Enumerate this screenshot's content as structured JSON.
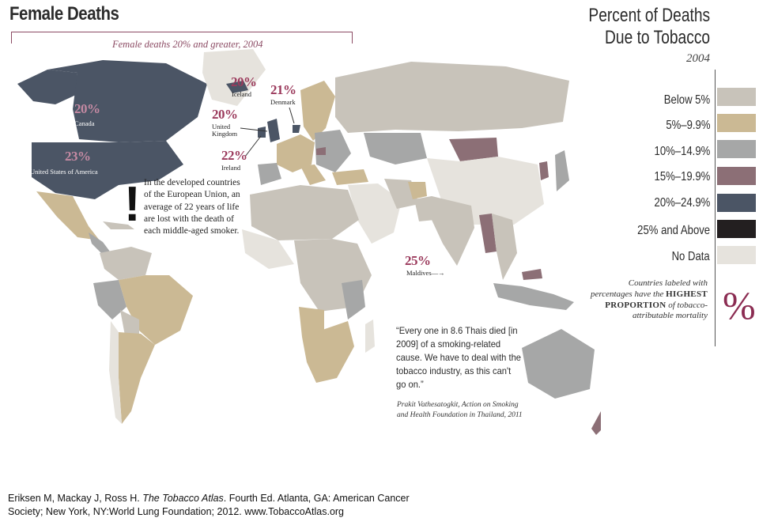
{
  "header": {
    "title": "Female Deaths",
    "subtitle": "Female deaths 20% and greater, 2004"
  },
  "callouts": [
    {
      "id": "canada",
      "pct": "20%",
      "name": "Canada"
    },
    {
      "id": "usa",
      "pct": "23%",
      "name": "United States of America"
    },
    {
      "id": "iceland",
      "pct": "20%",
      "name": "Iceland"
    },
    {
      "id": "denmark",
      "pct": "21%",
      "name": "Denmark"
    },
    {
      "id": "uk",
      "pct": "20%",
      "name": "United Kingdom"
    },
    {
      "id": "ireland",
      "pct": "22%",
      "name": "Ireland"
    },
    {
      "id": "maldives",
      "pct": "25%",
      "name": "Maldives"
    }
  ],
  "note": {
    "mark": "!",
    "text": "In the developed countries of the European Union, an average of 22 years of life are lost with the death of each middle-aged smoker."
  },
  "quote": {
    "text": "“Every one in 8.6 Thais died [in 2009] of a smoking-related cause. We have to deal with the tobacco industry, as this can't go on.”",
    "source": "Prakit Vathesatogkit, Action on Smoking and Health Foundation in Thailand, 2011"
  },
  "legend": {
    "title_line1": "Percent of Deaths",
    "title_line2": "Due to Tobacco",
    "year": "2004",
    "items": [
      {
        "label": "Below 5%",
        "color": "#c8c3ba"
      },
      {
        "label": "5%–9.9%",
        "color": "#cbb994"
      },
      {
        "label": "10%–14.9%",
        "color": "#a6a7a7"
      },
      {
        "label": "15%–19.9%",
        "color": "#8c6f76"
      },
      {
        "label": "20%–24.9%",
        "color": "#4b5565"
      },
      {
        "label": "25% and Above",
        "color": "#231f20"
      },
      {
        "label": "No Data",
        "color": "#e6e3dd"
      }
    ],
    "note_part1": "Countries labeled with percentages have the",
    "note_bold": "HIGHEST PROPORTION",
    "note_part2": "of tobacco-attributable mortality",
    "percent_glyph": "%"
  },
  "citation": {
    "part1": "Eriksen M, Mackay J, Ross H. ",
    "book": "The Tobacco Atlas",
    "part2": ". Fourth Ed. Atlanta, GA: American Cancer Society; New York, NY:World Lung Foundation; 2012. www.TobaccoAtlas.org"
  }
}
